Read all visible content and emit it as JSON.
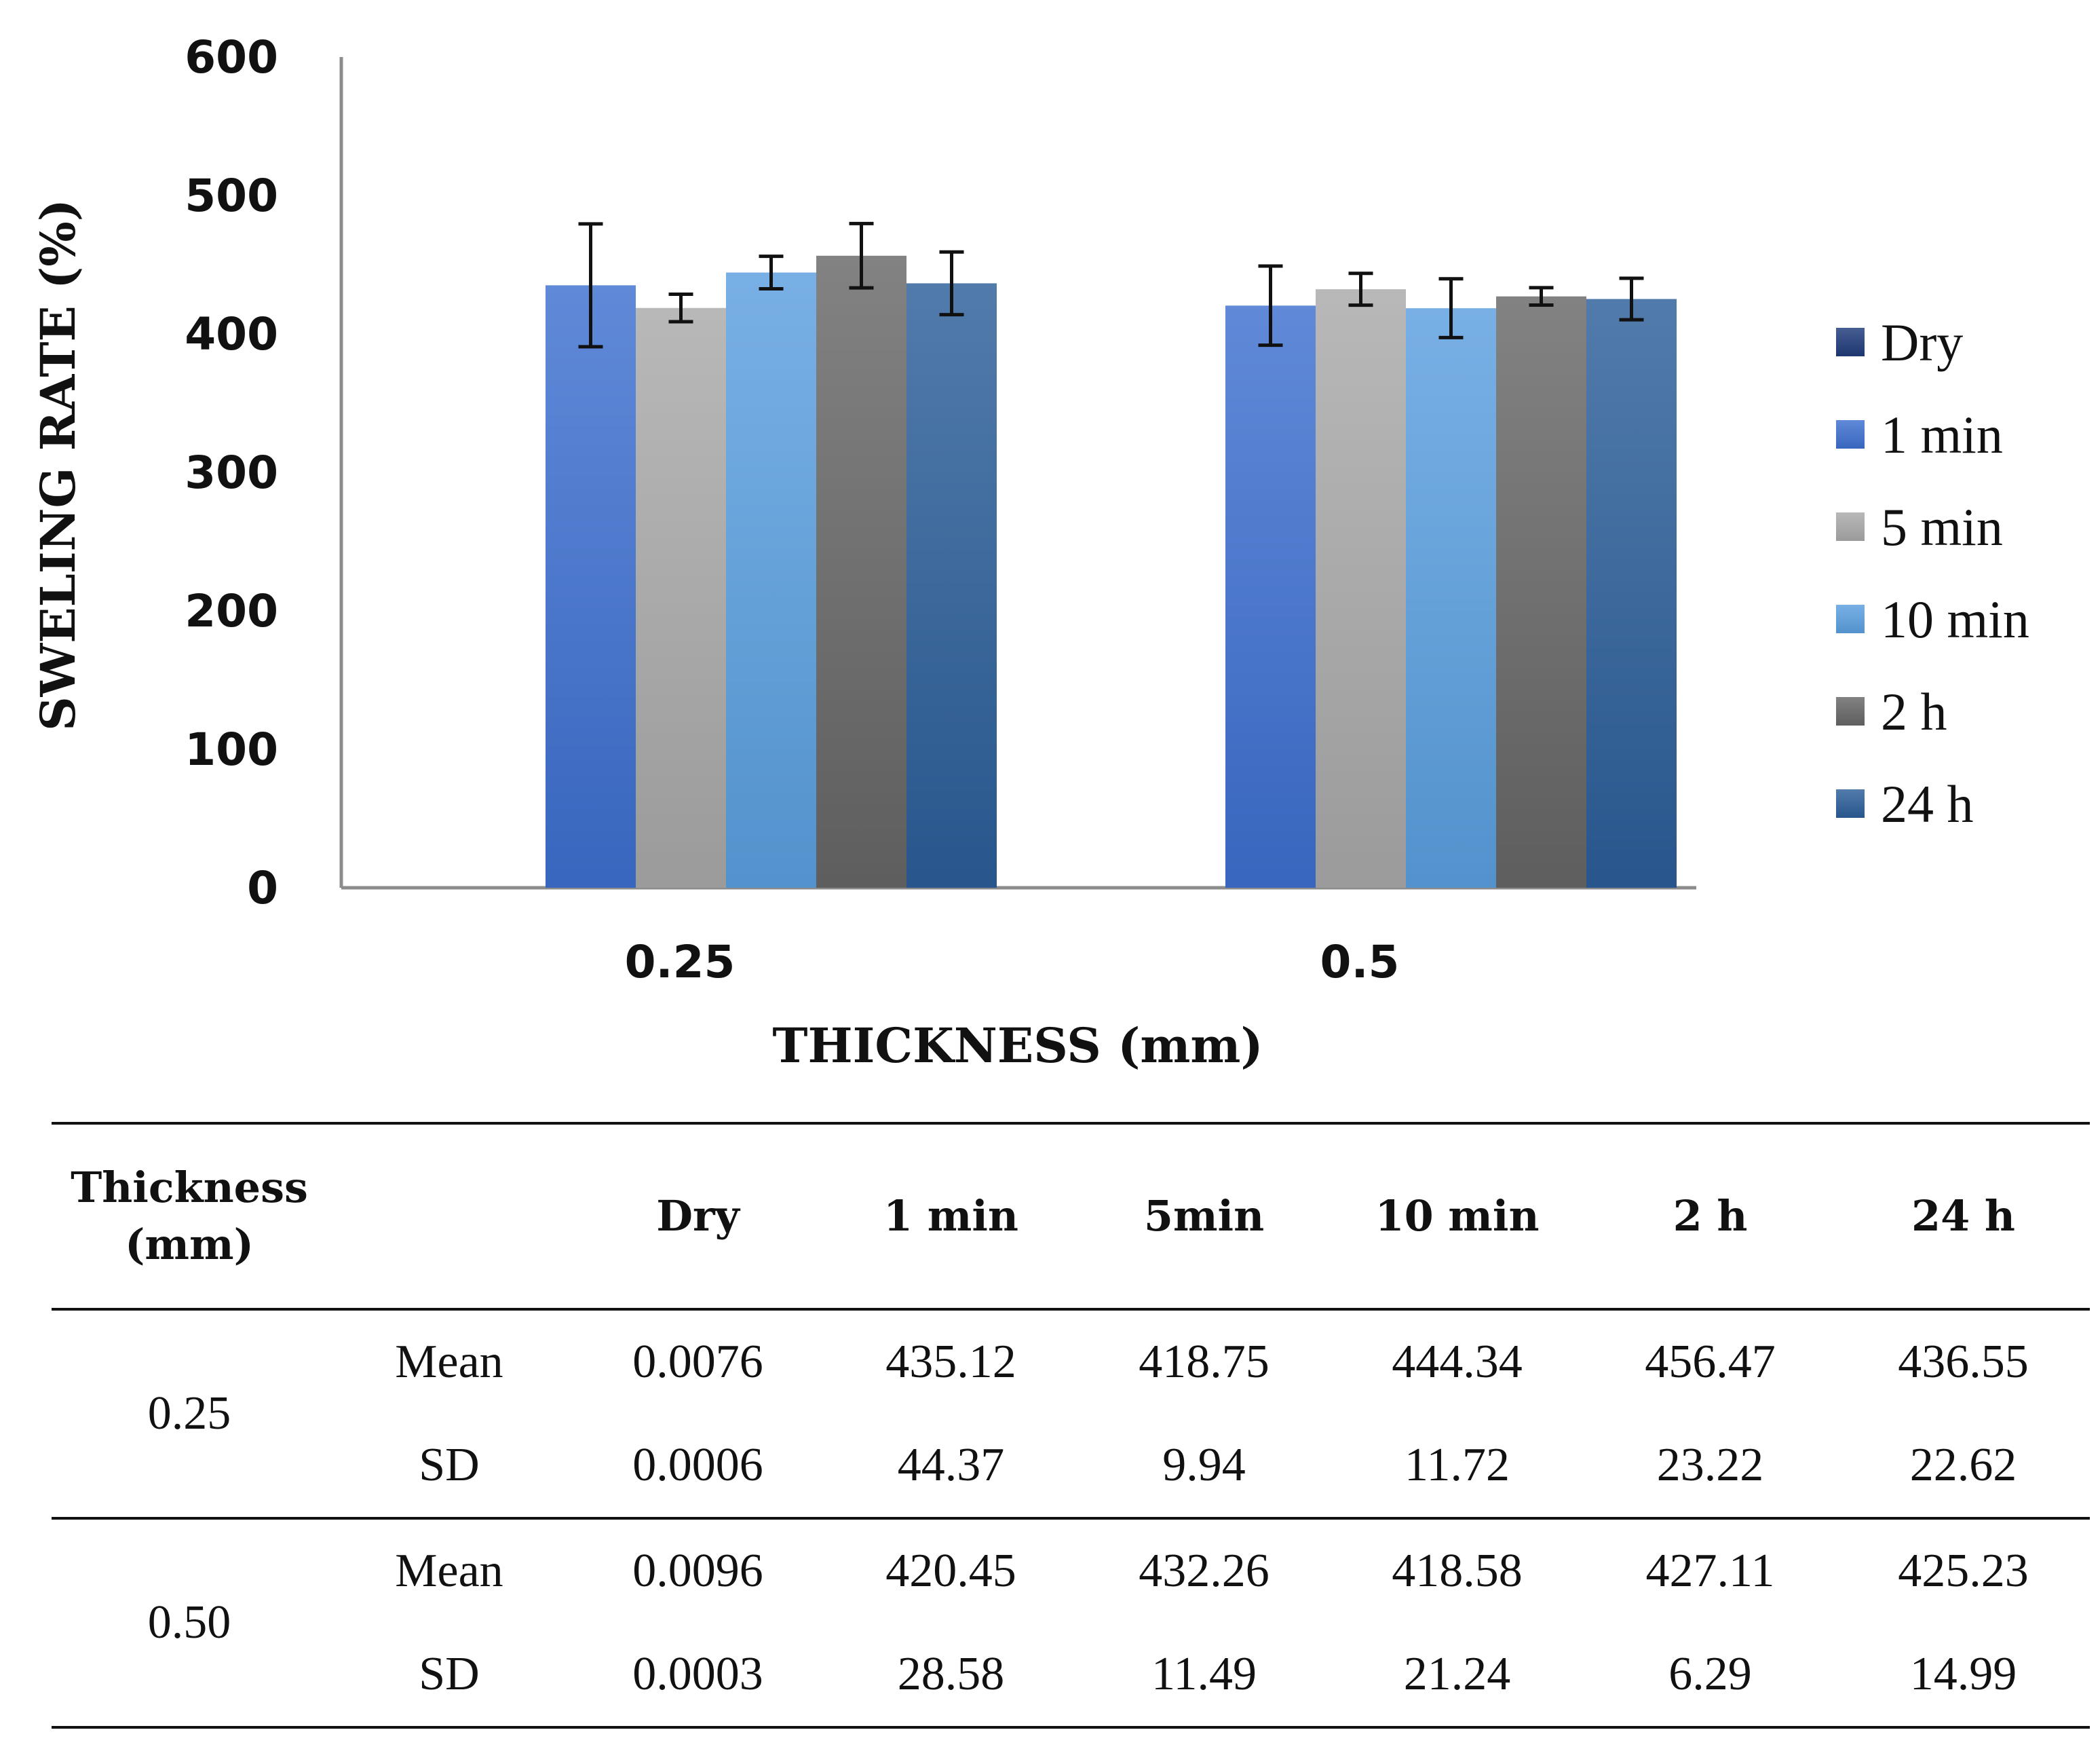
{
  "chart_data": {
    "type": "bar",
    "categories": [
      "0.25",
      "0.5"
    ],
    "series": [
      {
        "name": "Dry",
        "values": [
          0.0076,
          0.0096
        ],
        "errors": [
          0.0006,
          0.0003
        ],
        "color": "#1f3b7a"
      },
      {
        "name": "1 min",
        "values": [
          435.12,
          420.45
        ],
        "errors": [
          44.37,
          28.58
        ],
        "color": "#3d6fcf"
      },
      {
        "name": "5 min",
        "values": [
          418.75,
          432.26
        ],
        "errors": [
          9.94,
          11.49
        ],
        "color": "#a8a8a8"
      },
      {
        "name": "10 min",
        "values": [
          444.34,
          418.58
        ],
        "errors": [
          11.72,
          21.24
        ],
        "color": "#5a9fdf"
      },
      {
        "name": "2 h",
        "values": [
          456.47,
          427.11
        ],
        "errors": [
          23.22,
          6.29
        ],
        "color": "#666666"
      },
      {
        "name": "24 h",
        "values": [
          436.55,
          425.23
        ],
        "errors": [
          22.62,
          14.99
        ],
        "color": "#2b5e98"
      }
    ],
    "yticks": [
      "0",
      "100",
      "200",
      "300",
      "400",
      "500",
      "600"
    ],
    "ylim": [
      0,
      600
    ],
    "xlabel": "THICKNESS (mm)",
    "ylabel": "SWELING RATE  (%)",
    "legend_position": "right",
    "grid": false
  },
  "table": {
    "header": {
      "thickness_line1": "Thickness",
      "thickness_line2": "(mm)",
      "stat": "",
      "columns": [
        "Dry",
        "1 min",
        "5min",
        "10 min",
        "2 h",
        "24 h"
      ]
    },
    "groups": [
      {
        "thickness": "0.25",
        "rows": [
          {
            "stat": "Mean",
            "values": [
              "0.0076",
              "435.12",
              "418.75",
              "444.34",
              "456.47",
              "436.55"
            ]
          },
          {
            "stat": "SD",
            "values": [
              "0.0006",
              "44.37",
              "9.94",
              "11.72",
              "23.22",
              "22.62"
            ]
          }
        ]
      },
      {
        "thickness": "0.50",
        "rows": [
          {
            "stat": "Mean",
            "values": [
              "0.0096",
              "420.45",
              "432.26",
              "418.58",
              "427.11",
              "425.23"
            ]
          },
          {
            "stat": "SD",
            "values": [
              "0.0003",
              "28.58",
              "11.49",
              "21.24",
              "6.29",
              "14.99"
            ]
          }
        ]
      }
    ]
  }
}
